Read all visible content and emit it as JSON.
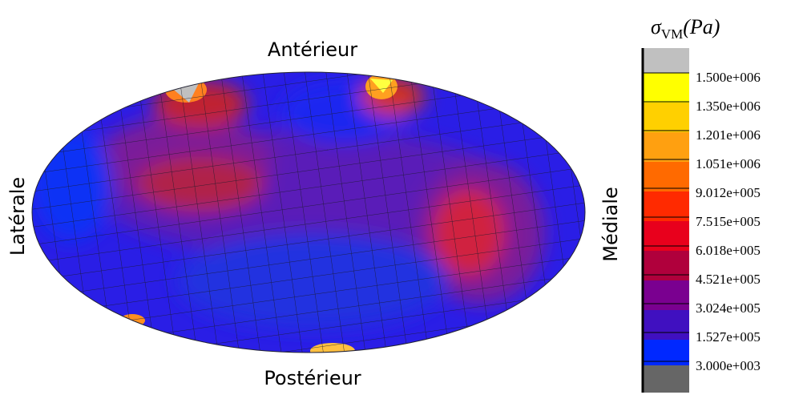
{
  "figure": {
    "labels": {
      "top": "Antérieur",
      "bottom": "Postérieur",
      "left": "Latérale",
      "right": "Médiale"
    },
    "colorbar": {
      "title": {
        "symbol": "σ",
        "subscript": "VM",
        "unit": "(Pa)"
      },
      "labels": [
        "1.500e+006",
        "1.350e+006",
        "1.201e+006",
        "1.051e+006",
        "9.012e+005",
        "7.515e+005",
        "6.018e+005",
        "4.521e+005",
        "3.024e+005",
        "1.527e+005",
        "3.000e+003"
      ]
    }
  }
}
